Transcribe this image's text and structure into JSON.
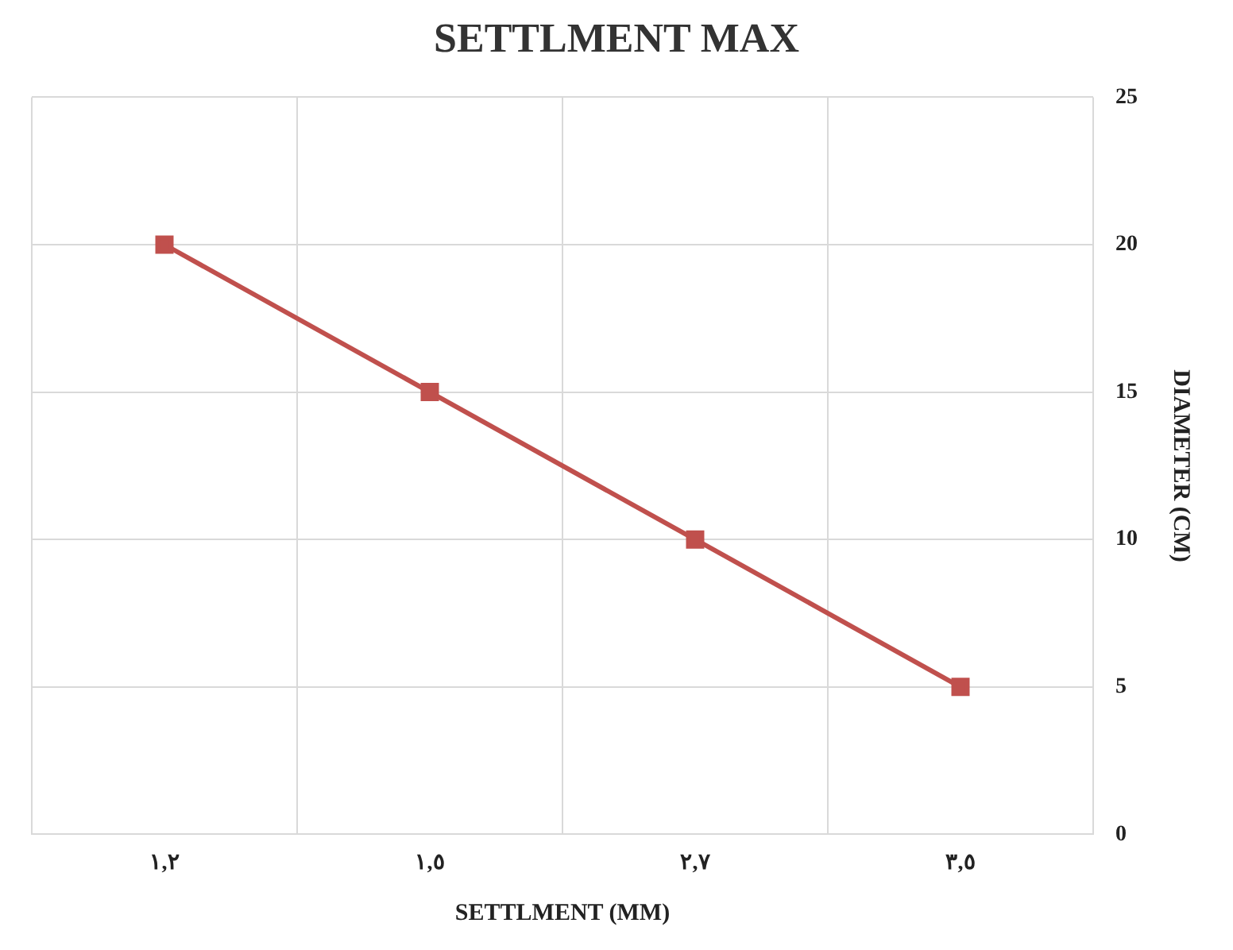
{
  "chart_data": {
    "type": "line",
    "title": "SETTLMENT MAX",
    "xlabel": "SETTLMENT (MM)",
    "ylabel": "DIAMETER (CM)",
    "categories": [
      "١,٢",
      "١,٥",
      "٢,٧",
      "٣,٥"
    ],
    "series": [
      {
        "color": "#c0504d",
        "values": [
          20,
          15,
          10,
          5
        ]
      }
    ],
    "ylim": [
      0,
      25
    ],
    "yticks": [
      0,
      5,
      10,
      15,
      20,
      25
    ],
    "grid": true,
    "legend": false,
    "marker": "square",
    "line_style": "solid"
  }
}
